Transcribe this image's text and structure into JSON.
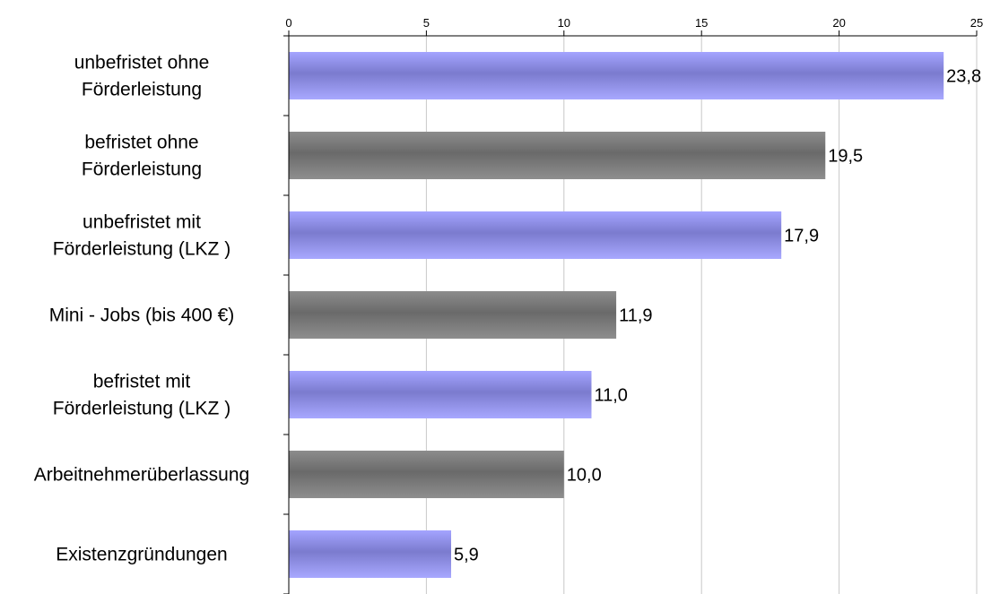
{
  "chart_data": {
    "type": "bar",
    "orientation": "horizontal",
    "title": "",
    "xlabel": "",
    "ylabel": "",
    "xlim": [
      0,
      25
    ],
    "x_ticks": [
      "0",
      "5",
      "10",
      "15",
      "20",
      "25"
    ],
    "x_axis_position": "top",
    "grid": true,
    "legend": "none",
    "categories": [
      "unbefristet ohne\nFörderleistung",
      "befristet ohne\nFörderleistung",
      "unbefristet mit\nFörderleistung (LKZ )",
      "Mini - Jobs  (bis 400 €)",
      "befristet mit\nFörderleistung (LKZ )",
      "Arbeitnehmerüberlassung",
      "Existenzgründungen"
    ],
    "values": [
      23.8,
      19.5,
      17.9,
      11.9,
      11.0,
      10.0,
      5.9
    ],
    "value_labels": [
      "23,8",
      "19,5",
      "17,9",
      "11,9",
      "11,0",
      "10,0",
      "5,9"
    ],
    "bar_colors": [
      "#9999ff",
      "#808080",
      "#9999ff",
      "#808080",
      "#9999ff",
      "#808080",
      "#9999ff"
    ]
  }
}
